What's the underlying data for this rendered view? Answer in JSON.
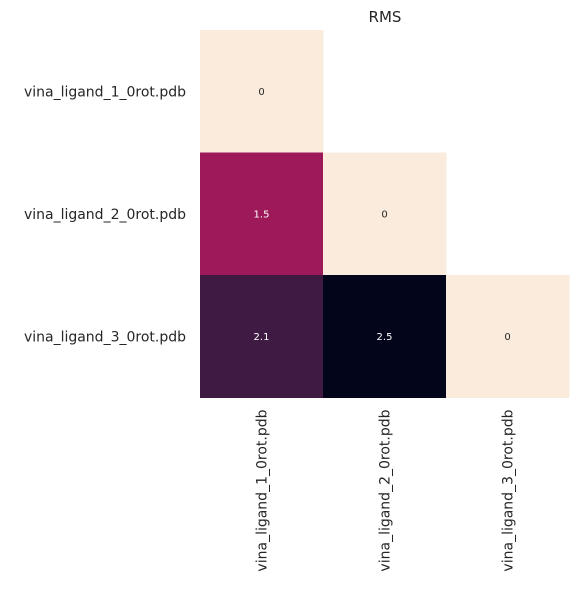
{
  "chart_data": {
    "type": "heatmap",
    "title": "RMS",
    "rows": [
      "vina_ligand_1_0rot.pdb",
      "vina_ligand_2_0rot.pdb",
      "vina_ligand_3_0rot.pdb"
    ],
    "columns": [
      "vina_ligand_1_0rot.pdb",
      "vina_ligand_2_0rot.pdb",
      "vina_ligand_3_0rot.pdb"
    ],
    "values": [
      [
        0,
        null,
        null
      ],
      [
        1.5,
        0,
        null
      ],
      [
        2.1,
        2.5,
        0
      ]
    ],
    "value_labels": [
      [
        "0",
        null,
        null
      ],
      [
        "1.5",
        "0",
        null
      ],
      [
        "2.1",
        "2.5",
        "0"
      ]
    ],
    "mask": "upper-triangle",
    "color_range": [
      0,
      2.5
    ],
    "colorbar": false,
    "grid": false
  }
}
